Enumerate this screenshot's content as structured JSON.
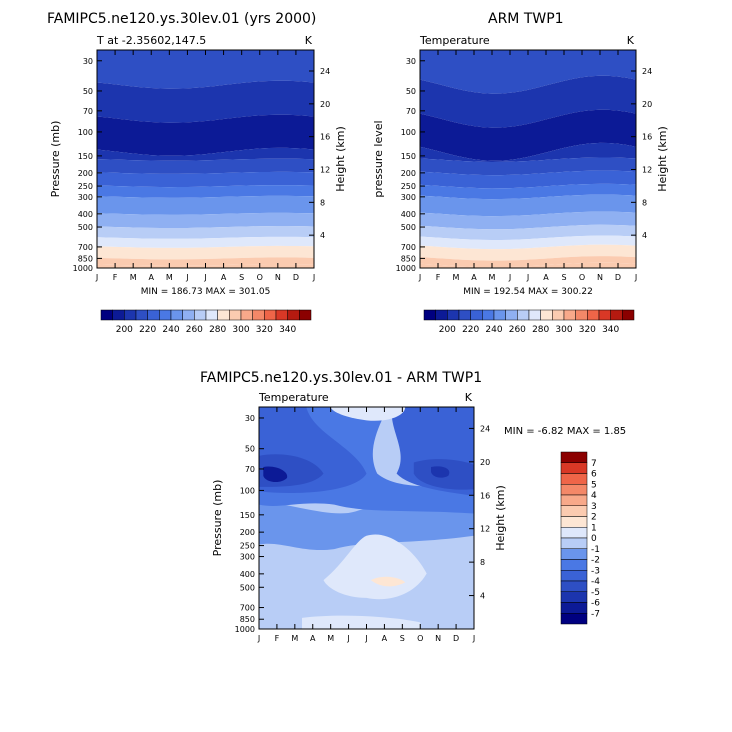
{
  "figure": {
    "overview_title": "FAMIPC5.ne120.ys.30lev.01 (yrs 2000)",
    "obs_title": "ARM TWP1",
    "diff_title": "FAMIPC5.ne120.ys.30lev.01 - ARM TWP1"
  },
  "chart_data": [
    {
      "id": "model",
      "type": "heatmap",
      "subtitle_left": "T at -2.35602,147.5",
      "subtitle_right": "K",
      "xlabel": "",
      "ylabel": "Pressure (mb)",
      "ylabel_right": "Height (km)",
      "x_ticks": [
        "J",
        "F",
        "M",
        "A",
        "M",
        "J",
        "J",
        "A",
        "S",
        "O",
        "N",
        "D",
        "J"
      ],
      "y_ticks": [
        30,
        50,
        70,
        100,
        150,
        200,
        250,
        300,
        400,
        500,
        700,
        850,
        1000
      ],
      "y_ticks_right": [
        24,
        20,
        16,
        12,
        8,
        4
      ],
      "stats": "MIN = 186.73 MAX = 301.05",
      "colorbar_labels": [
        "200",
        "220",
        "240",
        "260",
        "280",
        "300",
        "320",
        "340"
      ],
      "levels": [
        190,
        200,
        210,
        220,
        230,
        240,
        250,
        260,
        270,
        280,
        290,
        300,
        310,
        320,
        330,
        340,
        350
      ],
      "bands_by_pressure": [
        {
          "p": 30,
          "value": 218
        },
        {
          "p": 45,
          "value": 205
        },
        {
          "p": 80,
          "value": 195
        },
        {
          "p": 140,
          "value": 200
        },
        {
          "p": 160,
          "value": 210
        },
        {
          "p": 200,
          "value": 220
        },
        {
          "p": 250,
          "value": 230
        },
        {
          "p": 300,
          "value": 240
        },
        {
          "p": 400,
          "value": 252
        },
        {
          "p": 500,
          "value": 262
        },
        {
          "p": 600,
          "value": 272
        },
        {
          "p": 700,
          "value": 283
        },
        {
          "p": 850,
          "value": 292
        },
        {
          "p": 950,
          "value": 298
        }
      ]
    },
    {
      "id": "obs",
      "type": "heatmap",
      "subtitle_left": "Temperature",
      "subtitle_right": "K",
      "xlabel": "",
      "ylabel": "pressure level",
      "ylabel_right": "Height (km)",
      "x_ticks": [
        "J",
        "F",
        "M",
        "A",
        "M",
        "J",
        "J",
        "A",
        "S",
        "O",
        "N",
        "D",
        "J"
      ],
      "y_ticks": [
        30,
        50,
        70,
        100,
        150,
        200,
        250,
        300,
        400,
        500,
        700,
        850,
        1000
      ],
      "y_ticks_right": [
        24,
        20,
        16,
        12,
        8,
        4
      ],
      "stats": "MIN = 192.54 MAX = 300.22",
      "colorbar_labels": [
        "200",
        "220",
        "240",
        "260",
        "280",
        "300",
        "320",
        "340"
      ],
      "levels": [
        190,
        200,
        210,
        220,
        230,
        240,
        250,
        260,
        270,
        280,
        290,
        300,
        310,
        320,
        330,
        340,
        350
      ],
      "bands_by_pressure": [
        {
          "p": 30,
          "value": 218
        },
        {
          "p": 45,
          "value": 205
        },
        {
          "p": 80,
          "value": 195
        },
        {
          "p": 140,
          "value": 200
        },
        {
          "p": 160,
          "value": 210
        },
        {
          "p": 200,
          "value": 220
        },
        {
          "p": 250,
          "value": 230
        },
        {
          "p": 300,
          "value": 240
        },
        {
          "p": 400,
          "value": 252
        },
        {
          "p": 500,
          "value": 262
        },
        {
          "p": 600,
          "value": 272
        },
        {
          "p": 700,
          "value": 283
        },
        {
          "p": 850,
          "value": 292
        },
        {
          "p": 950,
          "value": 298
        }
      ]
    },
    {
      "id": "diff",
      "type": "heatmap",
      "subtitle_left": "Temperature",
      "subtitle_right": "K",
      "xlabel": "",
      "ylabel": "Pressure (mb)",
      "ylabel_right": "Height (km)",
      "x_ticks": [
        "J",
        "F",
        "M",
        "A",
        "M",
        "J",
        "J",
        "A",
        "S",
        "O",
        "N",
        "D",
        "J"
      ],
      "y_ticks": [
        30,
        50,
        70,
        100,
        150,
        200,
        250,
        300,
        400,
        500,
        700,
        850,
        1000
      ],
      "y_ticks_right": [
        24,
        20,
        16,
        12,
        8,
        4
      ],
      "stats": "MIN = -6.82 MAX = 1.85",
      "colorbar_labels": [
        "7",
        "6",
        "5",
        "4",
        "3",
        "2",
        "1",
        "0",
        "-1",
        "-2",
        "-3",
        "-4",
        "-5",
        "-6",
        "-7"
      ],
      "levels": [
        -7,
        -6,
        -5,
        -4,
        -3,
        -2,
        -1,
        0,
        1,
        2,
        3,
        4,
        5,
        6,
        7
      ],
      "regions": [
        {
          "desc": "background",
          "value": -0.5
        },
        {
          "desc": "upper-left blue",
          "value": -3.5
        },
        {
          "desc": "100mb left core",
          "value": -6.5
        },
        {
          "desc": "100mb right core",
          "value": -5.5
        },
        {
          "desc": "upper-right blue",
          "value": -3.5
        },
        {
          "desc": "mid blue 150-250",
          "value": -1.5
        },
        {
          "desc": "top warm patch",
          "value": 0.5
        },
        {
          "desc": "lower warm patch",
          "value": 0.5
        },
        {
          "desc": "lower warm core",
          "value": 1.5
        }
      ]
    }
  ],
  "colors": {
    "temp_palette": [
      "#000080",
      "#0c1a96",
      "#1c35ae",
      "#2e4fc4",
      "#3a62d6",
      "#4a78e4",
      "#6a95ec",
      "#8fb0f2",
      "#b8cdf6",
      "#dfe8fb",
      "#fde6d4",
      "#fbcbb0",
      "#f8a98a",
      "#f48868",
      "#ef6548",
      "#d93826",
      "#b51a10",
      "#8b0000"
    ],
    "diff_palette": [
      "#000080",
      "#0c1a96",
      "#1c35ae",
      "#2e4fc4",
      "#3a62d6",
      "#4a78e4",
      "#6a95ec",
      "#b8cdf6",
      "#dfe8fb",
      "#fde6d4",
      "#fbcbb0",
      "#f8a98a",
      "#f48868",
      "#ef6548",
      "#d93826",
      "#8b0000"
    ]
  }
}
